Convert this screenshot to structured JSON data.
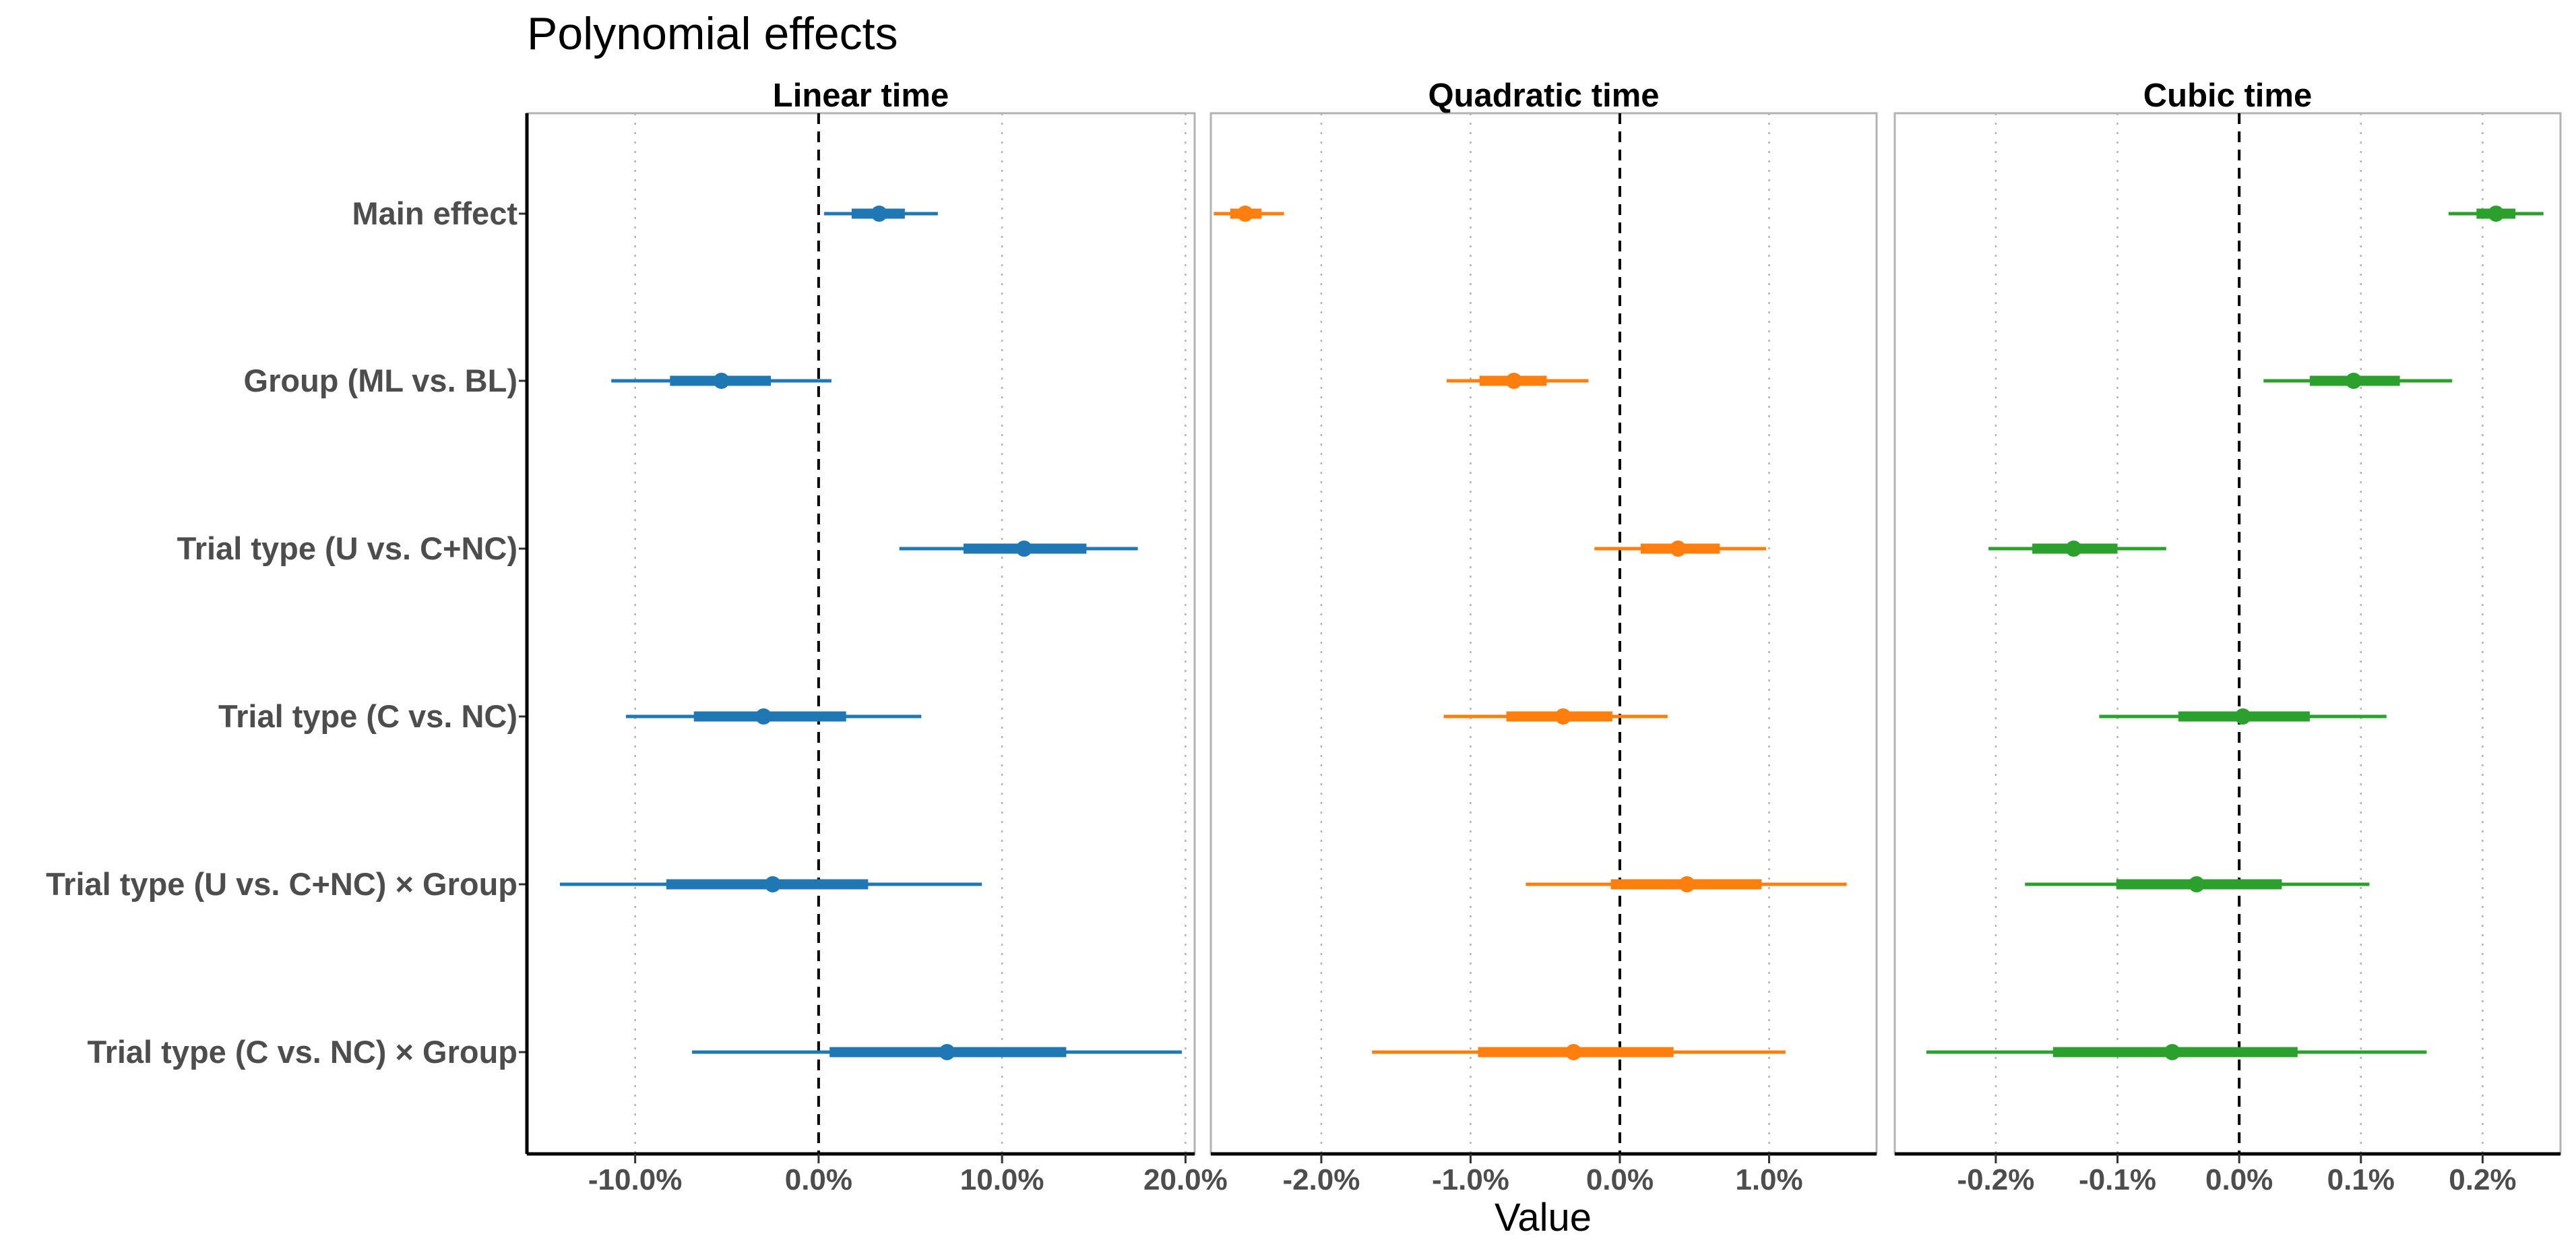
{
  "chart_data": {
    "type": "forest",
    "title": "Polynomial effects",
    "xlabel": "Value",
    "categories": [
      "Main effect",
      "Group (ML vs. BL)",
      "Trial type (U vs. C+NC)",
      "Trial type (C vs. NC)",
      "Trial type (U vs. C+NC) × Group",
      "Trial type (C vs. NC) × Group"
    ],
    "reference_line": 0,
    "grid": "vertical dotted at major ticks",
    "panels": [
      {
        "title": "Linear time",
        "color": "#1f77b4",
        "xlim": [
          -0.159,
          0.205
        ],
        "ticks": [
          -0.1,
          0.0,
          0.1,
          0.2
        ],
        "tick_labels": [
          "-10.0%",
          "0.0%",
          "10.0%",
          "20.0%"
        ],
        "estimates": [
          {
            "est": 0.033,
            "inner": [
              0.018,
              0.047
            ],
            "outer": [
              0.003,
              0.065
            ]
          },
          {
            "est": -0.053,
            "inner": [
              -0.081,
              -0.026
            ],
            "outer": [
              -0.113,
              0.007
            ]
          },
          {
            "est": 0.112,
            "inner": [
              0.079,
              0.146
            ],
            "outer": [
              0.044,
              0.174
            ]
          },
          {
            "est": -0.03,
            "inner": [
              -0.068,
              0.015
            ],
            "outer": [
              -0.105,
              0.056
            ]
          },
          {
            "est": -0.025,
            "inner": [
              -0.083,
              0.027
            ],
            "outer": [
              -0.141,
              0.089
            ]
          },
          {
            "est": 0.07,
            "inner": [
              0.006,
              0.135
            ],
            "outer": [
              -0.069,
              0.198
            ]
          }
        ]
      },
      {
        "title": "Quadratic time",
        "color": "#ff7f0e",
        "xlim": [
          -0.0274,
          0.0172
        ],
        "ticks": [
          -0.02,
          -0.01,
          0.0,
          0.01
        ],
        "tick_labels": [
          "-2.0%",
          "-1.0%",
          "0.0%",
          "1.0%"
        ],
        "estimates": [
          {
            "est": -0.0251,
            "inner": [
              -0.0261,
              -0.024
            ],
            "outer": [
              -0.0272,
              -0.0225
            ]
          },
          {
            "est": -0.0071,
            "inner": [
              -0.0094,
              -0.0049
            ],
            "outer": [
              -0.0116,
              -0.0021
            ]
          },
          {
            "est": 0.0039,
            "inner": [
              0.0014,
              0.0067
            ],
            "outer": [
              -0.0017,
              0.0098
            ]
          },
          {
            "est": -0.0038,
            "inner": [
              -0.0076,
              -0.0005
            ],
            "outer": [
              -0.0118,
              0.0032
            ]
          },
          {
            "est": 0.0045,
            "inner": [
              -0.0006,
              0.0095
            ],
            "outer": [
              -0.0063,
              0.0152
            ]
          },
          {
            "est": -0.0031,
            "inner": [
              -0.0095,
              0.0036
            ],
            "outer": [
              -0.0166,
              0.0111
            ]
          }
        ]
      },
      {
        "title": "Cubic time",
        "color": "#2ca02c",
        "xlim": [
          -0.00283,
          0.00264
        ],
        "ticks": [
          -0.002,
          -0.001,
          0.0,
          0.001,
          0.002
        ],
        "tick_labels": [
          "-0.2%",
          "-0.1%",
          "0.0%",
          "0.1%",
          "0.2%"
        ],
        "estimates": [
          {
            "est": 0.00211,
            "inner": [
              0.00195,
              0.00227
            ],
            "outer": [
              0.00172,
              0.0025
            ]
          },
          {
            "est": 0.00094,
            "inner": [
              0.00058,
              0.00132
            ],
            "outer": [
              0.0002,
              0.00175
            ]
          },
          {
            "est": -0.00136,
            "inner": [
              -0.0017,
              -0.001
            ],
            "outer": [
              -0.00206,
              -0.0006
            ]
          },
          {
            "est": 3e-05,
            "inner": [
              -0.0005,
              0.00058
            ],
            "outer": [
              -0.00115,
              0.00121
            ]
          },
          {
            "est": -0.00035,
            "inner": [
              -0.00101,
              0.00035
            ],
            "outer": [
              -0.00176,
              0.00107
            ]
          },
          {
            "est": -0.00055,
            "inner": [
              -0.00153,
              0.00048
            ],
            "outer": [
              -0.00257,
              0.00154
            ]
          }
        ]
      }
    ]
  }
}
